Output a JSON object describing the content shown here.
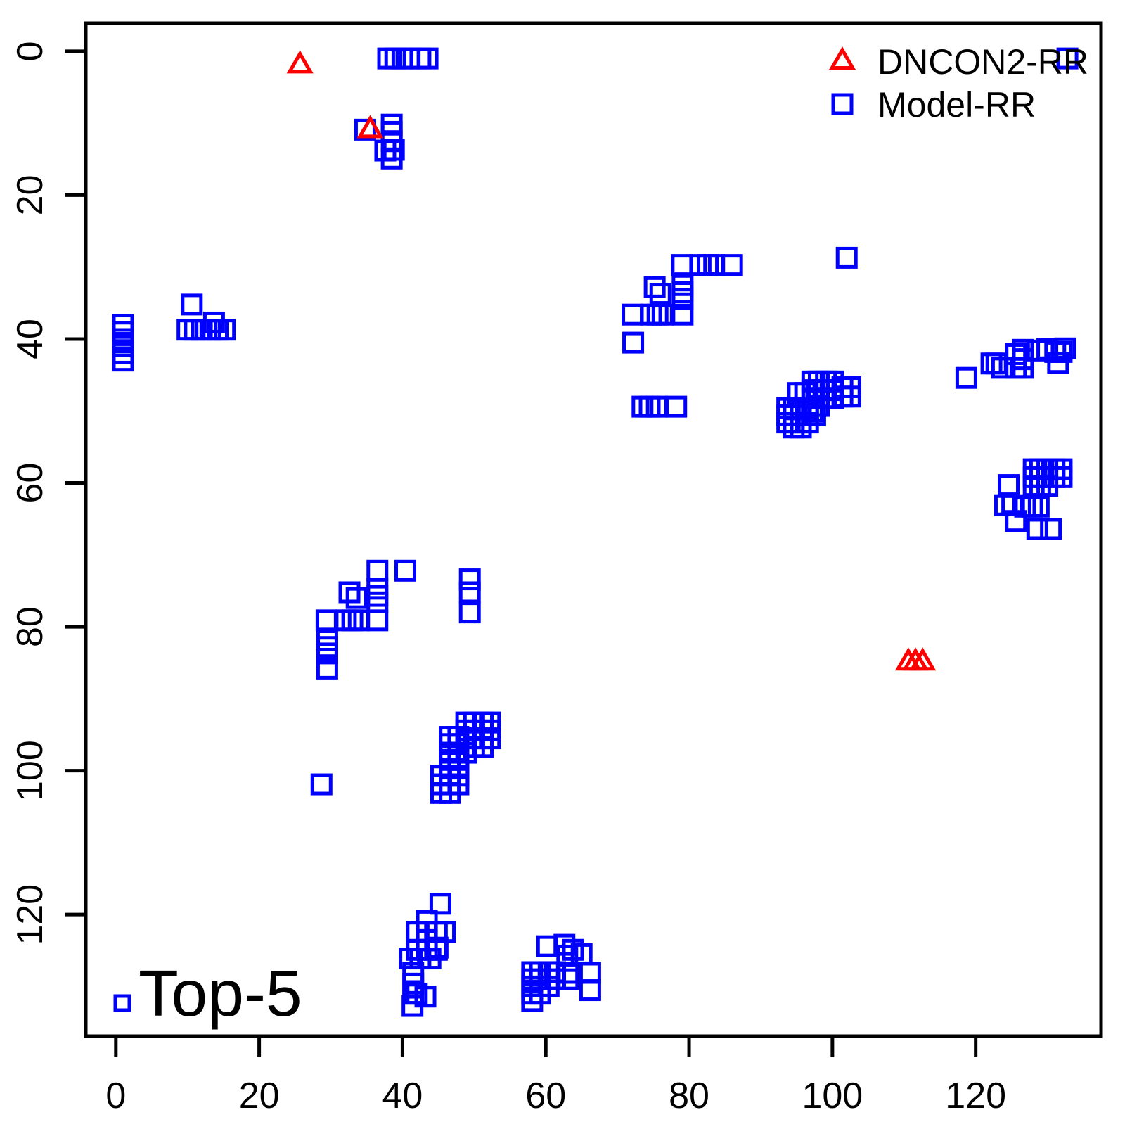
{
  "chart_data": {
    "type": "scatter",
    "title": "",
    "annotation": {
      "label": "Top-5",
      "marker": "square",
      "color": "#0000ff",
      "position": [
        0.9,
        132.3
      ]
    },
    "x_axis": {
      "tick_labels": [
        "0",
        "20",
        "40",
        "60",
        "80",
        "100",
        "120"
      ],
      "tick_values": [
        0,
        20,
        40,
        60,
        80,
        100,
        120
      ]
    },
    "y_axis": {
      "tick_labels": [
        "0",
        "20",
        "40",
        "60",
        "80",
        "100",
        "120"
      ],
      "tick_values": [
        0,
        20,
        40,
        60,
        80,
        100,
        120
      ],
      "reversed": true
    },
    "xlim": [
      -4.2,
      137.5
    ],
    "ylim": [
      -3.9,
      136.9
    ],
    "grid": false,
    "legend": {
      "position": "top-right",
      "items": [
        {
          "label": "DNCON2-RR",
          "marker": "triangle",
          "color": "#ff0000"
        },
        {
          "label": "Model-RR",
          "marker": "square",
          "color": "#0000ff"
        }
      ]
    },
    "series": [
      {
        "name": "DNCON2-RR",
        "marker": "triangle",
        "color": "#ff0000",
        "points": [
          [
            25.7,
            2
          ],
          [
            35.5,
            11
          ],
          [
            110.6,
            85
          ],
          [
            111.6,
            85
          ],
          [
            112.6,
            85
          ]
        ]
      },
      {
        "name": "Model-RR",
        "marker": "square",
        "color": "#0000ff",
        "points": [
          [
            38,
            1
          ],
          [
            39,
            1
          ],
          [
            40,
            1
          ],
          [
            41,
            1
          ],
          [
            42.5,
            1
          ],
          [
            43.5,
            1
          ],
          [
            132.8,
            1
          ],
          [
            34.8,
            10.9
          ],
          [
            38.5,
            10.2
          ],
          [
            38.5,
            11.2
          ],
          [
            38.5,
            12.5
          ],
          [
            37.6,
            13.8
          ],
          [
            38.8,
            13.7
          ],
          [
            38.5,
            14.9
          ],
          [
            10.6,
            35.2
          ],
          [
            13.7,
            37.7
          ],
          [
            10,
            38.7
          ],
          [
            11,
            38.7
          ],
          [
            12,
            38.7
          ],
          [
            13.2,
            38.7
          ],
          [
            14.2,
            38.7
          ],
          [
            15.2,
            38.7
          ],
          [
            1,
            38
          ],
          [
            1,
            39
          ],
          [
            1,
            40
          ],
          [
            1,
            41
          ],
          [
            1,
            42
          ],
          [
            1,
            43
          ],
          [
            102,
            28.7
          ],
          [
            79,
            29.7
          ],
          [
            81.6,
            29.7
          ],
          [
            82.6,
            29.7
          ],
          [
            83.5,
            29.7
          ],
          [
            86,
            29.7
          ],
          [
            75.2,
            32.8
          ],
          [
            76,
            33.7
          ],
          [
            79.1,
            32.5
          ],
          [
            79.1,
            33.5
          ],
          [
            79.1,
            34.4
          ],
          [
            72.1,
            36.6
          ],
          [
            74.7,
            36.6
          ],
          [
            75.6,
            36.6
          ],
          [
            76.3,
            36.6
          ],
          [
            79.1,
            36.6
          ],
          [
            72.2,
            40.5
          ],
          [
            73.5,
            49.4
          ],
          [
            74.5,
            49.4
          ],
          [
            75.5,
            49.4
          ],
          [
            78.2,
            49.4
          ],
          [
            97.2,
            45.9
          ],
          [
            98.1,
            45.9
          ],
          [
            99.1,
            45.9
          ],
          [
            100.1,
            45.9
          ],
          [
            101.4,
            46.7
          ],
          [
            102.5,
            46.7
          ],
          [
            97.2,
            47.1
          ],
          [
            98.1,
            47.1
          ],
          [
            99.1,
            47.1
          ],
          [
            100.1,
            47.1
          ],
          [
            95.2,
            47.5
          ],
          [
            96.2,
            47.5
          ],
          [
            101.4,
            48
          ],
          [
            102.5,
            48
          ],
          [
            97.2,
            48.2
          ],
          [
            98.1,
            48.2
          ],
          [
            99.1,
            48.2
          ],
          [
            100.1,
            48.2
          ],
          [
            98.1,
            49.3
          ],
          [
            97.2,
            50.1
          ],
          [
            93.7,
            49.6
          ],
          [
            94.6,
            49.6
          ],
          [
            95.6,
            49.6
          ],
          [
            96.6,
            49.6
          ],
          [
            93.7,
            50.6
          ],
          [
            94.6,
            50.6
          ],
          [
            95.6,
            50.6
          ],
          [
            96.6,
            50.6
          ],
          [
            97.6,
            50.6
          ],
          [
            93.7,
            51.6
          ],
          [
            94.6,
            51.6
          ],
          [
            95.6,
            51.6
          ],
          [
            96.6,
            51.6
          ],
          [
            94.6,
            52.3
          ],
          [
            95.6,
            52.3
          ],
          [
            118.7,
            45.4
          ],
          [
            122.2,
            43.4
          ],
          [
            122.9,
            43.4
          ],
          [
            123.7,
            44
          ],
          [
            125.6,
            42.1
          ],
          [
            126.6,
            41.5
          ],
          [
            126.6,
            42.8
          ],
          [
            125.6,
            44
          ],
          [
            126.6,
            44
          ],
          [
            128.6,
            41.6
          ],
          [
            130,
            41.4
          ],
          [
            131.1,
            41.8
          ],
          [
            132,
            41.8
          ],
          [
            132.5,
            41.3
          ],
          [
            131.5,
            43.3
          ],
          [
            128.1,
            58.1
          ],
          [
            129,
            58.1
          ],
          [
            130,
            58.1
          ],
          [
            131,
            58.1
          ],
          [
            132,
            58.1
          ],
          [
            128.1,
            59.2
          ],
          [
            129,
            59.2
          ],
          [
            130,
            59.2
          ],
          [
            131,
            59.2
          ],
          [
            132,
            59.2
          ],
          [
            128.1,
            60.4
          ],
          [
            129,
            60.4
          ],
          [
            130,
            60.4
          ],
          [
            124.6,
            60.3
          ],
          [
            124.1,
            63.1
          ],
          [
            125.1,
            63.1
          ],
          [
            126.9,
            63.3
          ],
          [
            127.9,
            63.3
          ],
          [
            128.8,
            63.3
          ],
          [
            125.6,
            65.3
          ],
          [
            128.6,
            66.4
          ],
          [
            130.5,
            66.4
          ],
          [
            36.5,
            72.2
          ],
          [
            40.4,
            72.2
          ],
          [
            32.6,
            75.2
          ],
          [
            33.6,
            76
          ],
          [
            36.5,
            74.7
          ],
          [
            36.5,
            75.7
          ],
          [
            36.5,
            76.6
          ],
          [
            29.4,
            79.1
          ],
          [
            32.1,
            79.1
          ],
          [
            33,
            79.1
          ],
          [
            33.9,
            79.1
          ],
          [
            36.5,
            79.1
          ],
          [
            29.5,
            81.9
          ],
          [
            29.5,
            82.8
          ],
          [
            29.5,
            83.7
          ],
          [
            29.5,
            85.8
          ],
          [
            49.4,
            73.4
          ],
          [
            49.4,
            75.2
          ],
          [
            49.4,
            78
          ],
          [
            28.7,
            101.9
          ],
          [
            48.9,
            93.3
          ],
          [
            50,
            93.3
          ],
          [
            51.2,
            93.3
          ],
          [
            52.2,
            93.3
          ],
          [
            48.9,
            94.4
          ],
          [
            50,
            94.4
          ],
          [
            51.2,
            94.4
          ],
          [
            52.2,
            94.4
          ],
          [
            48.9,
            95.5
          ],
          [
            50,
            95.5
          ],
          [
            51.2,
            95.5
          ],
          [
            52.2,
            95.5
          ],
          [
            50,
            96.7
          ],
          [
            51.2,
            96.7
          ],
          [
            46.6,
            95.3
          ],
          [
            47.8,
            95.3
          ],
          [
            46.6,
            96.3
          ],
          [
            47.8,
            96.3
          ],
          [
            46.6,
            97.5
          ],
          [
            47.8,
            97.5
          ],
          [
            48.9,
            97.5
          ],
          [
            46.6,
            98.5
          ],
          [
            47.8,
            98.5
          ],
          [
            46.6,
            99.7
          ],
          [
            47.8,
            99.7
          ],
          [
            45.4,
            100.7
          ],
          [
            46.6,
            100.7
          ],
          [
            47.8,
            100.7
          ],
          [
            45.4,
            101.9
          ],
          [
            46.6,
            101.9
          ],
          [
            47.8,
            101.9
          ],
          [
            45.4,
            103.1
          ],
          [
            46.6,
            103.1
          ],
          [
            45.3,
            118.5
          ],
          [
            43.4,
            120.9
          ],
          [
            42,
            122.4
          ],
          [
            43.4,
            122.4
          ],
          [
            44.8,
            122.4
          ],
          [
            45.9,
            122.4
          ],
          [
            43.4,
            123.6
          ],
          [
            44.9,
            124.6
          ],
          [
            42,
            124.9
          ],
          [
            43.4,
            124.9
          ],
          [
            44.8,
            124.9
          ],
          [
            41,
            126.1
          ],
          [
            42.5,
            126.1
          ],
          [
            43.9,
            126.1
          ],
          [
            41.5,
            128.1
          ],
          [
            41.5,
            129.6
          ],
          [
            41.5,
            131
          ],
          [
            42,
            131
          ],
          [
            43.2,
            131.4
          ],
          [
            41.4,
            132.7
          ],
          [
            60.2,
            124.4
          ],
          [
            62.6,
            124.2
          ],
          [
            63.8,
            124.9
          ],
          [
            63,
            125.7
          ],
          [
            65,
            125.5
          ],
          [
            63.1,
            128.1
          ],
          [
            63.1,
            129
          ],
          [
            66.2,
            128.1
          ],
          [
            66.2,
            130.5
          ],
          [
            58.1,
            128
          ],
          [
            59.2,
            128
          ],
          [
            60.4,
            128
          ],
          [
            61.3,
            128
          ],
          [
            58.1,
            129
          ],
          [
            59.2,
            129
          ],
          [
            60.4,
            129
          ],
          [
            61.3,
            129
          ],
          [
            58.1,
            130
          ],
          [
            59.2,
            130
          ],
          [
            60.4,
            130
          ],
          [
            58.1,
            131
          ],
          [
            59.2,
            131
          ],
          [
            58.1,
            132
          ]
        ]
      }
    ]
  },
  "legend": {
    "items": [
      {
        "label": "DNCON2-RR"
      },
      {
        "label": "Model-RR"
      }
    ]
  },
  "annotation": {
    "label": "Top-5"
  }
}
